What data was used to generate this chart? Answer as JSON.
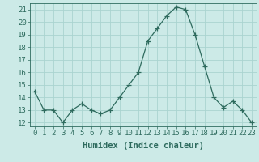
{
  "x": [
    0,
    1,
    2,
    3,
    4,
    5,
    6,
    7,
    8,
    9,
    10,
    11,
    12,
    13,
    14,
    15,
    16,
    17,
    18,
    19,
    20,
    21,
    22,
    23
  ],
  "y": [
    14.5,
    13.0,
    13.0,
    12.0,
    13.0,
    13.5,
    13.0,
    12.7,
    13.0,
    14.0,
    15.0,
    16.0,
    18.5,
    19.5,
    20.5,
    21.2,
    21.0,
    19.0,
    16.5,
    14.0,
    13.2,
    13.7,
    13.0,
    12.0
  ],
  "line_color": "#2e6b5e",
  "marker": "+",
  "marker_size": 4,
  "bg_color": "#cceae7",
  "grid_color": "#aad4d0",
  "xlabel": "Humidex (Indice chaleur)",
  "xlim": [
    -0.5,
    23.5
  ],
  "ylim": [
    11.7,
    21.5
  ],
  "yticks": [
    12,
    13,
    14,
    15,
    16,
    17,
    18,
    19,
    20,
    21
  ],
  "xtick_labels": [
    "0",
    "1",
    "2",
    "3",
    "4",
    "5",
    "6",
    "7",
    "8",
    "9",
    "10",
    "11",
    "12",
    "13",
    "14",
    "15",
    "16",
    "17",
    "18",
    "19",
    "20",
    "21",
    "22",
    "23"
  ],
  "xlabel_fontsize": 7.5,
  "tick_fontsize": 6.5
}
